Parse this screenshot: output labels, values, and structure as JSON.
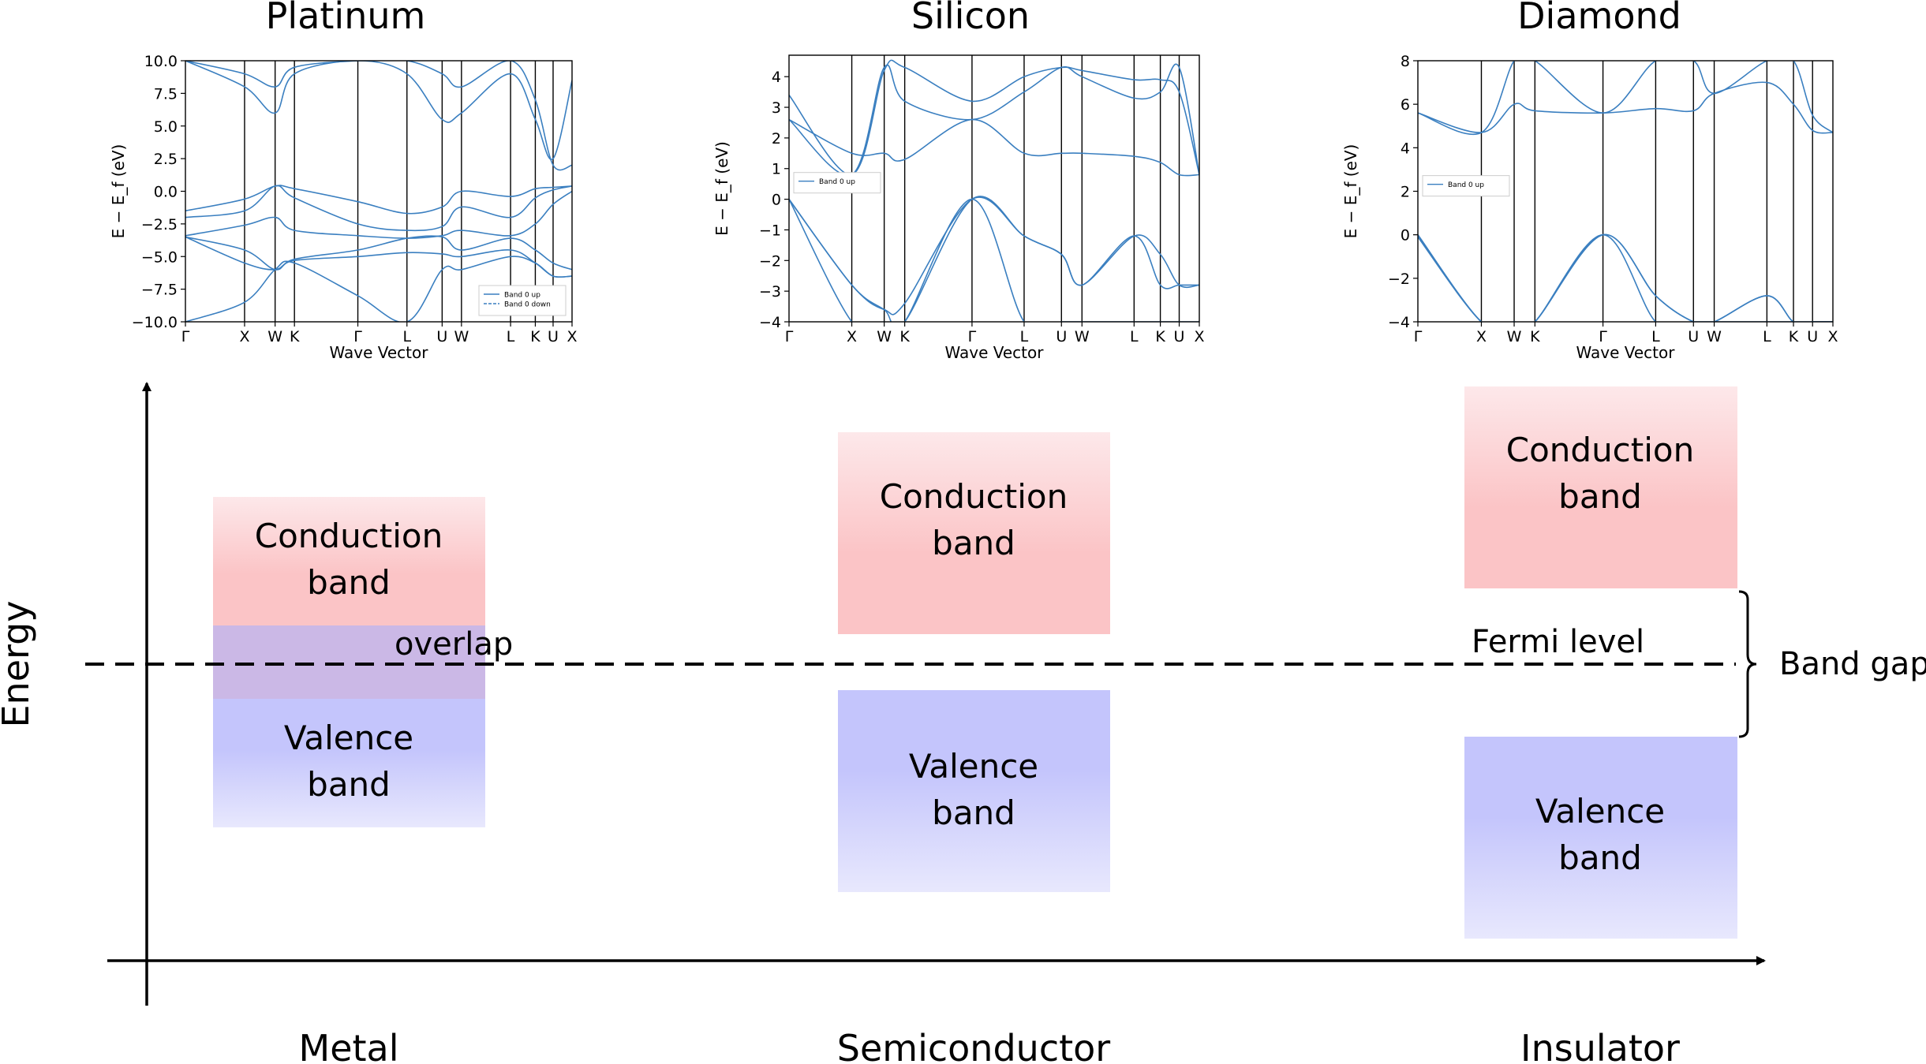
{
  "colors": {
    "band_line": "#3a7fc0",
    "conduction_top": "#fde8ea",
    "conduction_mid": "#fbc4c6",
    "valence_mid": "#c4c5fc",
    "valence_bottom": "#e8e8fd",
    "overlap": "#cbb8e6"
  },
  "panels": [
    {
      "title": "Platinum",
      "ylabel": "E − E_f (eV)",
      "xlabel": "Wave Vector",
      "ylim": [
        -10,
        10
      ],
      "yticks": [
        "10.0",
        "7.5",
        "5.0",
        "2.5",
        "0.0",
        "−2.5",
        "−5.0",
        "−7.5",
        "−10.0"
      ],
      "kpoints": [
        "Γ",
        "X",
        "W",
        "K",
        "Γ",
        "L",
        "U",
        "W",
        "L",
        "K",
        "U",
        "X"
      ],
      "kpos": [
        0,
        0.153,
        0.232,
        0.282,
        0.446,
        0.573,
        0.664,
        0.714,
        0.841,
        0.905,
        0.951,
        1.0
      ],
      "legend": [
        "Band 0 up",
        "Band 0 down"
      ],
      "legend_pos": "bottom-right",
      "bands": [
        [
          -1.5,
          -0.6,
          0.4,
          0.2,
          -0.8,
          -1.7,
          -1.2,
          0.0,
          -0.4,
          0.2,
          0.3,
          0.4
        ],
        [
          -2.0,
          -1.5,
          0.4,
          -0.5,
          -2.5,
          -3.0,
          -2.7,
          -1.2,
          -2.0,
          -0.5,
          0.1,
          0.4
        ],
        [
          -3.4,
          -2.6,
          -2.0,
          -3.0,
          -3.4,
          -3.6,
          -3.4,
          -3.0,
          -3.4,
          -2.5,
          -1.0,
          0.0
        ],
        [
          -3.5,
          -4.5,
          -6.0,
          -5.2,
          -4.5,
          -3.6,
          -3.5,
          -4.5,
          -3.6,
          -4.5,
          -5.5,
          -6.0
        ],
        [
          -3.5,
          -5.5,
          -6.0,
          -5.3,
          -5.0,
          -4.7,
          -4.8,
          -5.0,
          -4.5,
          -5.5,
          -6.5,
          -6.5
        ],
        [
          -10.0,
          -8.5,
          -6.0,
          -5.5,
          -8.0,
          -10.0,
          -6.0,
          -6.0,
          -5.0,
          -5.5,
          -6.5,
          -6.5
        ],
        [
          10.0,
          8.0,
          6.0,
          9.0,
          10.0,
          9.0,
          5.5,
          6.0,
          9.0,
          5.5,
          2.5,
          8.5
        ],
        [
          10.0,
          9.0,
          8.0,
          9.5,
          10.0,
          10.0,
          9.0,
          8.0,
          10.0,
          7.0,
          2.0,
          2.0
        ]
      ]
    },
    {
      "title": "Silicon",
      "ylabel": "E − E_f (eV)",
      "xlabel": "Wave Vector",
      "ylim": [
        -4,
        4.7
      ],
      "yticks": [
        "4",
        "3",
        "2",
        "1",
        "0",
        "−1",
        "−2",
        "−3",
        "−4"
      ],
      "kpoints": [
        "Γ",
        "X",
        "W",
        "K",
        "Γ",
        "L",
        "U",
        "W",
        "L",
        "K",
        "U",
        "X"
      ],
      "kpos": [
        0,
        0.153,
        0.232,
        0.282,
        0.446,
        0.573,
        0.664,
        0.714,
        0.841,
        0.905,
        0.951,
        1.0
      ],
      "legend": [
        "Band 0 up"
      ],
      "legend_pos": "top-left",
      "bands": [
        [
          2.6,
          1.5,
          1.5,
          1.3,
          2.6,
          1.5,
          1.5,
          1.5,
          1.4,
          1.2,
          0.8,
          0.8
        ],
        [
          2.6,
          0.8,
          4.3,
          3.2,
          2.6,
          3.5,
          4.3,
          4.0,
          3.3,
          3.5,
          4.3,
          0.8
        ],
        [
          3.4,
          0.8,
          4.2,
          4.3,
          3.2,
          4.0,
          4.3,
          4.2,
          3.9,
          3.9,
          3.5,
          0.8
        ],
        [
          0.0,
          -2.8,
          -3.6,
          -3.4,
          0.0,
          -1.2,
          -1.8,
          -2.8,
          -1.2,
          -1.8,
          -2.8,
          -2.8
        ],
        [
          0.0,
          -2.8,
          -3.6,
          -4.0,
          0.0,
          -1.2,
          -1.8,
          -2.8,
          -1.2,
          -2.8,
          -2.8,
          -2.8
        ],
        [
          0.0,
          -4.0,
          -4.0,
          -4.0,
          0.0,
          -4.0,
          -4.0,
          -4.0,
          -4.0,
          -4.0,
          -4.0,
          -4.0
        ]
      ]
    },
    {
      "title": "Diamond",
      "ylabel": "E − E_f (eV)",
      "xlabel": "Wave Vector",
      "ylim": [
        -4,
        8
      ],
      "yticks": [
        "8",
        "6",
        "4",
        "2",
        "0",
        "−2",
        "−4"
      ],
      "kpoints": [
        "Γ",
        "X",
        "W",
        "K",
        "Γ",
        "L",
        "U",
        "W",
        "L",
        "K",
        "U",
        "X"
      ],
      "kpos": [
        0,
        0.153,
        0.232,
        0.282,
        0.446,
        0.573,
        0.664,
        0.714,
        0.841,
        0.905,
        0.951,
        1.0
      ],
      "legend": [
        "Band 0 up"
      ],
      "legend_pos": "top-left",
      "bands": [
        [
          5.6,
          4.7,
          8.0,
          8.0,
          5.6,
          8.0,
          8.0,
          6.5,
          8.0,
          8.0,
          5.5,
          4.7
        ],
        [
          5.6,
          4.7,
          6.0,
          5.7,
          5.6,
          5.8,
          5.7,
          6.5,
          7.0,
          6.0,
          4.8,
          4.7
        ],
        [
          0.0,
          -4.0,
          -4.0,
          -4.0,
          0.0,
          -2.8,
          -4.0,
          -4.0,
          -2.8,
          -4.0,
          -4.0,
          -4.0
        ],
        [
          0.0,
          -4.0,
          -4.0,
          -4.0,
          0.0,
          -2.8,
          -4.0,
          -4.0,
          -2.8,
          -4.0,
          -4.0,
          -4.0
        ],
        [
          -0.1,
          -4.0,
          -4.0,
          -4.0,
          0.0,
          -4.0,
          -4.0,
          -4.0,
          -4.0,
          -4.0,
          -4.0,
          -4.0
        ]
      ]
    }
  ],
  "diagram": {
    "y_axis_label": "Energy",
    "fermi_label": "Fermi level",
    "band_gap_label": "Band gap",
    "overlap_label": "overlap",
    "columns": [
      {
        "label": "Metal",
        "conduction": [
          "Conduction",
          "band"
        ],
        "valence": [
          "Valence",
          "band"
        ]
      },
      {
        "label": "Semiconductor",
        "conduction": [
          "Conduction",
          "band"
        ],
        "valence": [
          "Valence",
          "band"
        ]
      },
      {
        "label": "Insulator",
        "conduction": [
          "Conduction",
          "band"
        ],
        "valence": [
          "Valence",
          "band"
        ]
      }
    ]
  }
}
